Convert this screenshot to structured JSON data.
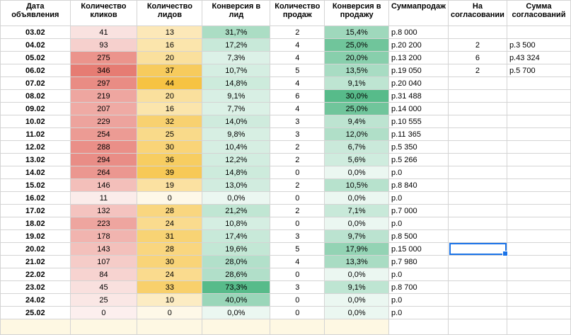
{
  "headers": {
    "date": "Дата объявления",
    "clicks": "Количество кликов",
    "leads": "Количество лидов",
    "conv_lead": "Конверсия в лид",
    "sales": "Количество продаж",
    "conv_sale": "Конверсия в продажу",
    "sum": "Суммапродаж",
    "pending": "На согласовании",
    "pending_sum": "Сумма согласований"
  },
  "colors": {
    "clicks_high": "#e67c73",
    "leads_high": "#f6c343",
    "conv_lead_high": "#57bb8a",
    "conv_sale_high": "#57bb8a",
    "total_row": "#fef8e3",
    "selection": "#1a73e8"
  },
  "rows": [
    {
      "date": "03.02",
      "clicks": "41",
      "leads": "13",
      "conv_lead": "31,7%",
      "sales": "2",
      "conv_sale": "15,4%",
      "sum": "р.8 000",
      "pending": "",
      "pending_sum": ""
    },
    {
      "date": "04.02",
      "clicks": "93",
      "leads": "16",
      "conv_lead": "17,2%",
      "sales": "4",
      "conv_sale": "25,0%",
      "sum": "р.20 200",
      "pending": "2",
      "pending_sum": "р.3 500"
    },
    {
      "date": "05.02",
      "clicks": "275",
      "leads": "20",
      "conv_lead": "7,3%",
      "sales": "4",
      "conv_sale": "20,0%",
      "sum": "р.13 200",
      "pending": "6",
      "pending_sum": "р.43 324"
    },
    {
      "date": "06.02",
      "clicks": "346",
      "leads": "37",
      "conv_lead": "10,7%",
      "sales": "5",
      "conv_sale": "13,5%",
      "sum": "р.19 050",
      "pending": "2",
      "pending_sum": "р.5 700"
    },
    {
      "date": "07.02",
      "clicks": "297",
      "leads": "44",
      "conv_lead": "14,8%",
      "sales": "4",
      "conv_sale": "9,1%",
      "sum": "р.20 040",
      "pending": "",
      "pending_sum": ""
    },
    {
      "date": "08.02",
      "clicks": "219",
      "leads": "20",
      "conv_lead": "9,1%",
      "sales": "6",
      "conv_sale": "30,0%",
      "sum": "р.31 488",
      "pending": "",
      "pending_sum": ""
    },
    {
      "date": "09.02",
      "clicks": "207",
      "leads": "16",
      "conv_lead": "7,7%",
      "sales": "4",
      "conv_sale": "25,0%",
      "sum": "р.14 000",
      "pending": "",
      "pending_sum": ""
    },
    {
      "date": "10.02",
      "clicks": "229",
      "leads": "32",
      "conv_lead": "14,0%",
      "sales": "3",
      "conv_sale": "9,4%",
      "sum": "р.10 555",
      "pending": "",
      "pending_sum": ""
    },
    {
      "date": "11.02",
      "clicks": "254",
      "leads": "25",
      "conv_lead": "9,8%",
      "sales": "3",
      "conv_sale": "12,0%",
      "sum": "р.11 365",
      "pending": "",
      "pending_sum": ""
    },
    {
      "date": "12.02",
      "clicks": "288",
      "leads": "30",
      "conv_lead": "10,4%",
      "sales": "2",
      "conv_sale": "6,7%",
      "sum": "р.5 350",
      "pending": "",
      "pending_sum": ""
    },
    {
      "date": "13.02",
      "clicks": "294",
      "leads": "36",
      "conv_lead": "12,2%",
      "sales": "2",
      "conv_sale": "5,6%",
      "sum": "р.5 266",
      "pending": "",
      "pending_sum": ""
    },
    {
      "date": "14.02",
      "clicks": "264",
      "leads": "39",
      "conv_lead": "14,8%",
      "sales": "0",
      "conv_sale": "0,0%",
      "sum": "р.0",
      "pending": "",
      "pending_sum": ""
    },
    {
      "date": "15.02",
      "clicks": "146",
      "leads": "19",
      "conv_lead": "13,0%",
      "sales": "2",
      "conv_sale": "10,5%",
      "sum": "р.8 840",
      "pending": "",
      "pending_sum": ""
    },
    {
      "date": "16.02",
      "clicks": "11",
      "leads": "0",
      "conv_lead": "0,0%",
      "sales": "0",
      "conv_sale": "0,0%",
      "sum": "р.0",
      "pending": "",
      "pending_sum": ""
    },
    {
      "date": "17.02",
      "clicks": "132",
      "leads": "28",
      "conv_lead": "21,2%",
      "sales": "2",
      "conv_sale": "7,1%",
      "sum": "р.7 000",
      "pending": "",
      "pending_sum": ""
    },
    {
      "date": "18.02",
      "clicks": "223",
      "leads": "24",
      "conv_lead": "10,8%",
      "sales": "0",
      "conv_sale": "0,0%",
      "sum": "р.0",
      "pending": "",
      "pending_sum": ""
    },
    {
      "date": "19.02",
      "clicks": "178",
      "leads": "31",
      "conv_lead": "17,4%",
      "sales": "3",
      "conv_sale": "9,7%",
      "sum": "р.8 500",
      "pending": "",
      "pending_sum": ""
    },
    {
      "date": "20.02",
      "clicks": "143",
      "leads": "28",
      "conv_lead": "19,6%",
      "sales": "5",
      "conv_sale": "17,9%",
      "sum": "р.15 000",
      "pending": "",
      "pending_sum": ""
    },
    {
      "date": "21.02",
      "clicks": "107",
      "leads": "30",
      "conv_lead": "28,0%",
      "sales": "4",
      "conv_sale": "13,3%",
      "sum": "р.7 980",
      "pending": "",
      "pending_sum": ""
    },
    {
      "date": "22.02",
      "clicks": "84",
      "leads": "24",
      "conv_lead": "28,6%",
      "sales": "0",
      "conv_sale": "0,0%",
      "sum": "р.0",
      "pending": "",
      "pending_sum": ""
    },
    {
      "date": "23.02",
      "clicks": "45",
      "leads": "33",
      "conv_lead": "73,3%",
      "sales": "3",
      "conv_sale": "9,1%",
      "sum": "р.8 700",
      "pending": "",
      "pending_sum": ""
    },
    {
      "date": "24.02",
      "clicks": "25",
      "leads": "10",
      "conv_lead": "40,0%",
      "sales": "0",
      "conv_sale": "0,0%",
      "sum": "р.0",
      "pending": "",
      "pending_sum": ""
    },
    {
      "date": "25.02",
      "clicks": "0",
      "leads": "0",
      "conv_lead": "0,0%",
      "sales": "0",
      "conv_sale": "0,0%",
      "sum": "р.0",
      "pending": "",
      "pending_sum": ""
    }
  ]
}
